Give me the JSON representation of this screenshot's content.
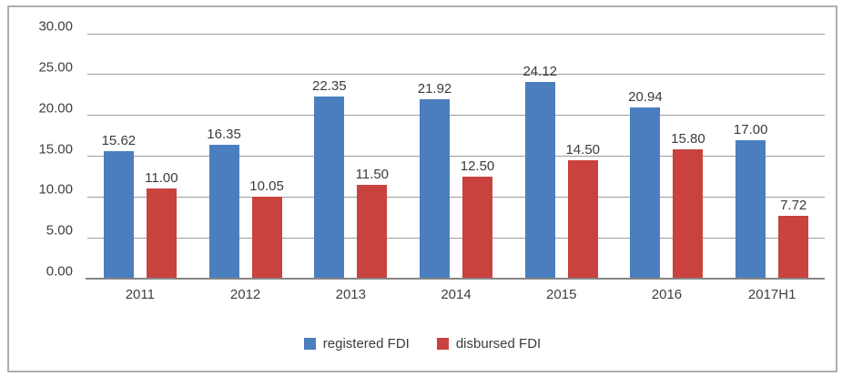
{
  "chart_data": {
    "type": "bar",
    "title": "",
    "xlabel": "",
    "ylabel": "",
    "categories": [
      "2011",
      "2012",
      "2013",
      "2014",
      "2015",
      "2016",
      "2017H1"
    ],
    "series": [
      {
        "name": "registered FDI",
        "color": "#4b7ebe",
        "values": [
          15.62,
          16.35,
          22.35,
          21.92,
          24.12,
          20.94,
          17.0
        ]
      },
      {
        "name": "disbursed FDI",
        "color": "#c9423e",
        "values": [
          11.0,
          10.05,
          11.5,
          12.5,
          14.5,
          15.8,
          7.72
        ]
      }
    ],
    "ylim": [
      0,
      30
    ],
    "ytick_step": 5,
    "ytick_labels": [
      "0.00",
      "5.00",
      "10.00",
      "15.00",
      "20.00",
      "25.00",
      "30.00"
    ],
    "value_label_decimals": 2,
    "grid": true,
    "legend_position": "bottom"
  },
  "colors": {
    "grid_line": "#9d9d9d",
    "axis_line": "#868686",
    "text": "#3f3f3f",
    "frame_border": "#aeaeae",
    "background": "#ffffff"
  }
}
